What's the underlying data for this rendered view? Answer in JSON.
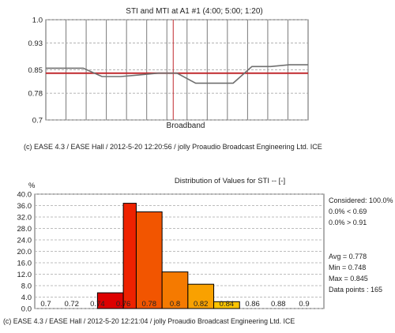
{
  "top_chart": {
    "title": "STI and MTI at A1 #1  (4:00; 5:00; 1:20)",
    "xlabel": "Broadband",
    "footer": "(c) EASE 4.3  / EASE Hall  / 2012-5-20 12:20:56 / jolly Proaudio Broadcast Engineering Ltd. ICE"
  },
  "bottom_chart": {
    "title": "Distribution of Values for STI  -- [-]",
    "y_unit": "%",
    "footer": "(c) EASE 4.3  / EASE Hall  / 2012-5-20 12:21:04 / jolly Proaudio Broadcast Engineering Ltd. ICE",
    "stats": {
      "considered": "Considered: 100.0%",
      "below": "0.0%  < 0.69",
      "above": "0.0%  > 0.91",
      "avg": "Avg = 0.778",
      "min": "Min = 0.748",
      "max": "Max = 0.845",
      "points": "Data points : 165"
    }
  },
  "chart_data": [
    {
      "type": "line",
      "title": "STI and MTI at A1 #1  (4:00; 5:00; 1:20)",
      "xlabel": "Broadband",
      "ylabel": "",
      "ylim": [
        0.7,
        1.0
      ],
      "yticks": [
        "1.0",
        "0.93",
        "0.85",
        "0.78",
        "0.7"
      ],
      "grid": true,
      "x": [
        0,
        1,
        2,
        3,
        4,
        5,
        6,
        7,
        8,
        9,
        10,
        11,
        12,
        13,
        14
      ],
      "series": [
        {
          "name": "",
          "color": "#c0282d",
          "values": [
            0.84,
            0.84,
            0.84,
            0.84,
            0.84,
            0.84,
            0.84,
            0.84,
            0.84,
            0.84,
            0.84,
            0.84,
            0.84,
            0.84,
            0.84
          ]
        },
        {
          "name": "",
          "color": "#707070",
          "values": [
            0.855,
            0.855,
            0.855,
            0.83,
            0.83,
            0.835,
            0.84,
            0.84,
            0.81,
            0.81,
            0.81,
            0.86,
            0.86,
            0.865,
            0.865
          ]
        }
      ],
      "marker_x": 6.8
    },
    {
      "type": "bar",
      "title": "Distribution of Values for STI  -- [-]",
      "xlabel": "",
      "ylabel": "%",
      "ylim": [
        0,
        40
      ],
      "yticks": [
        "0.0",
        "4.0",
        "8.0",
        "12.0",
        "16.0",
        "20.0",
        "24.0",
        "28.0",
        "32.0",
        "36.0",
        "40.0"
      ],
      "xticks": [
        "0.7",
        "0.72",
        "0.74",
        "0.76",
        "0.78",
        "0.8",
        "0.82",
        "0.84",
        "0.86",
        "0.88",
        "0.9"
      ],
      "xlim": [
        0.7,
        0.9
      ],
      "bins": [
        {
          "from": 0.74,
          "to": 0.76,
          "value": 5.5,
          "color": "#dd0000"
        },
        {
          "from": 0.76,
          "to": 0.77,
          "value": 36.8,
          "color": "#ee2200"
        },
        {
          "from": 0.77,
          "to": 0.79,
          "value": 33.8,
          "color": "#f25500"
        },
        {
          "from": 0.79,
          "to": 0.81,
          "value": 12.8,
          "color": "#f57a00"
        },
        {
          "from": 0.81,
          "to": 0.83,
          "value": 8.5,
          "color": "#f9a100"
        },
        {
          "from": 0.83,
          "to": 0.85,
          "value": 2.4,
          "color": "#fcc400"
        }
      ]
    }
  ]
}
